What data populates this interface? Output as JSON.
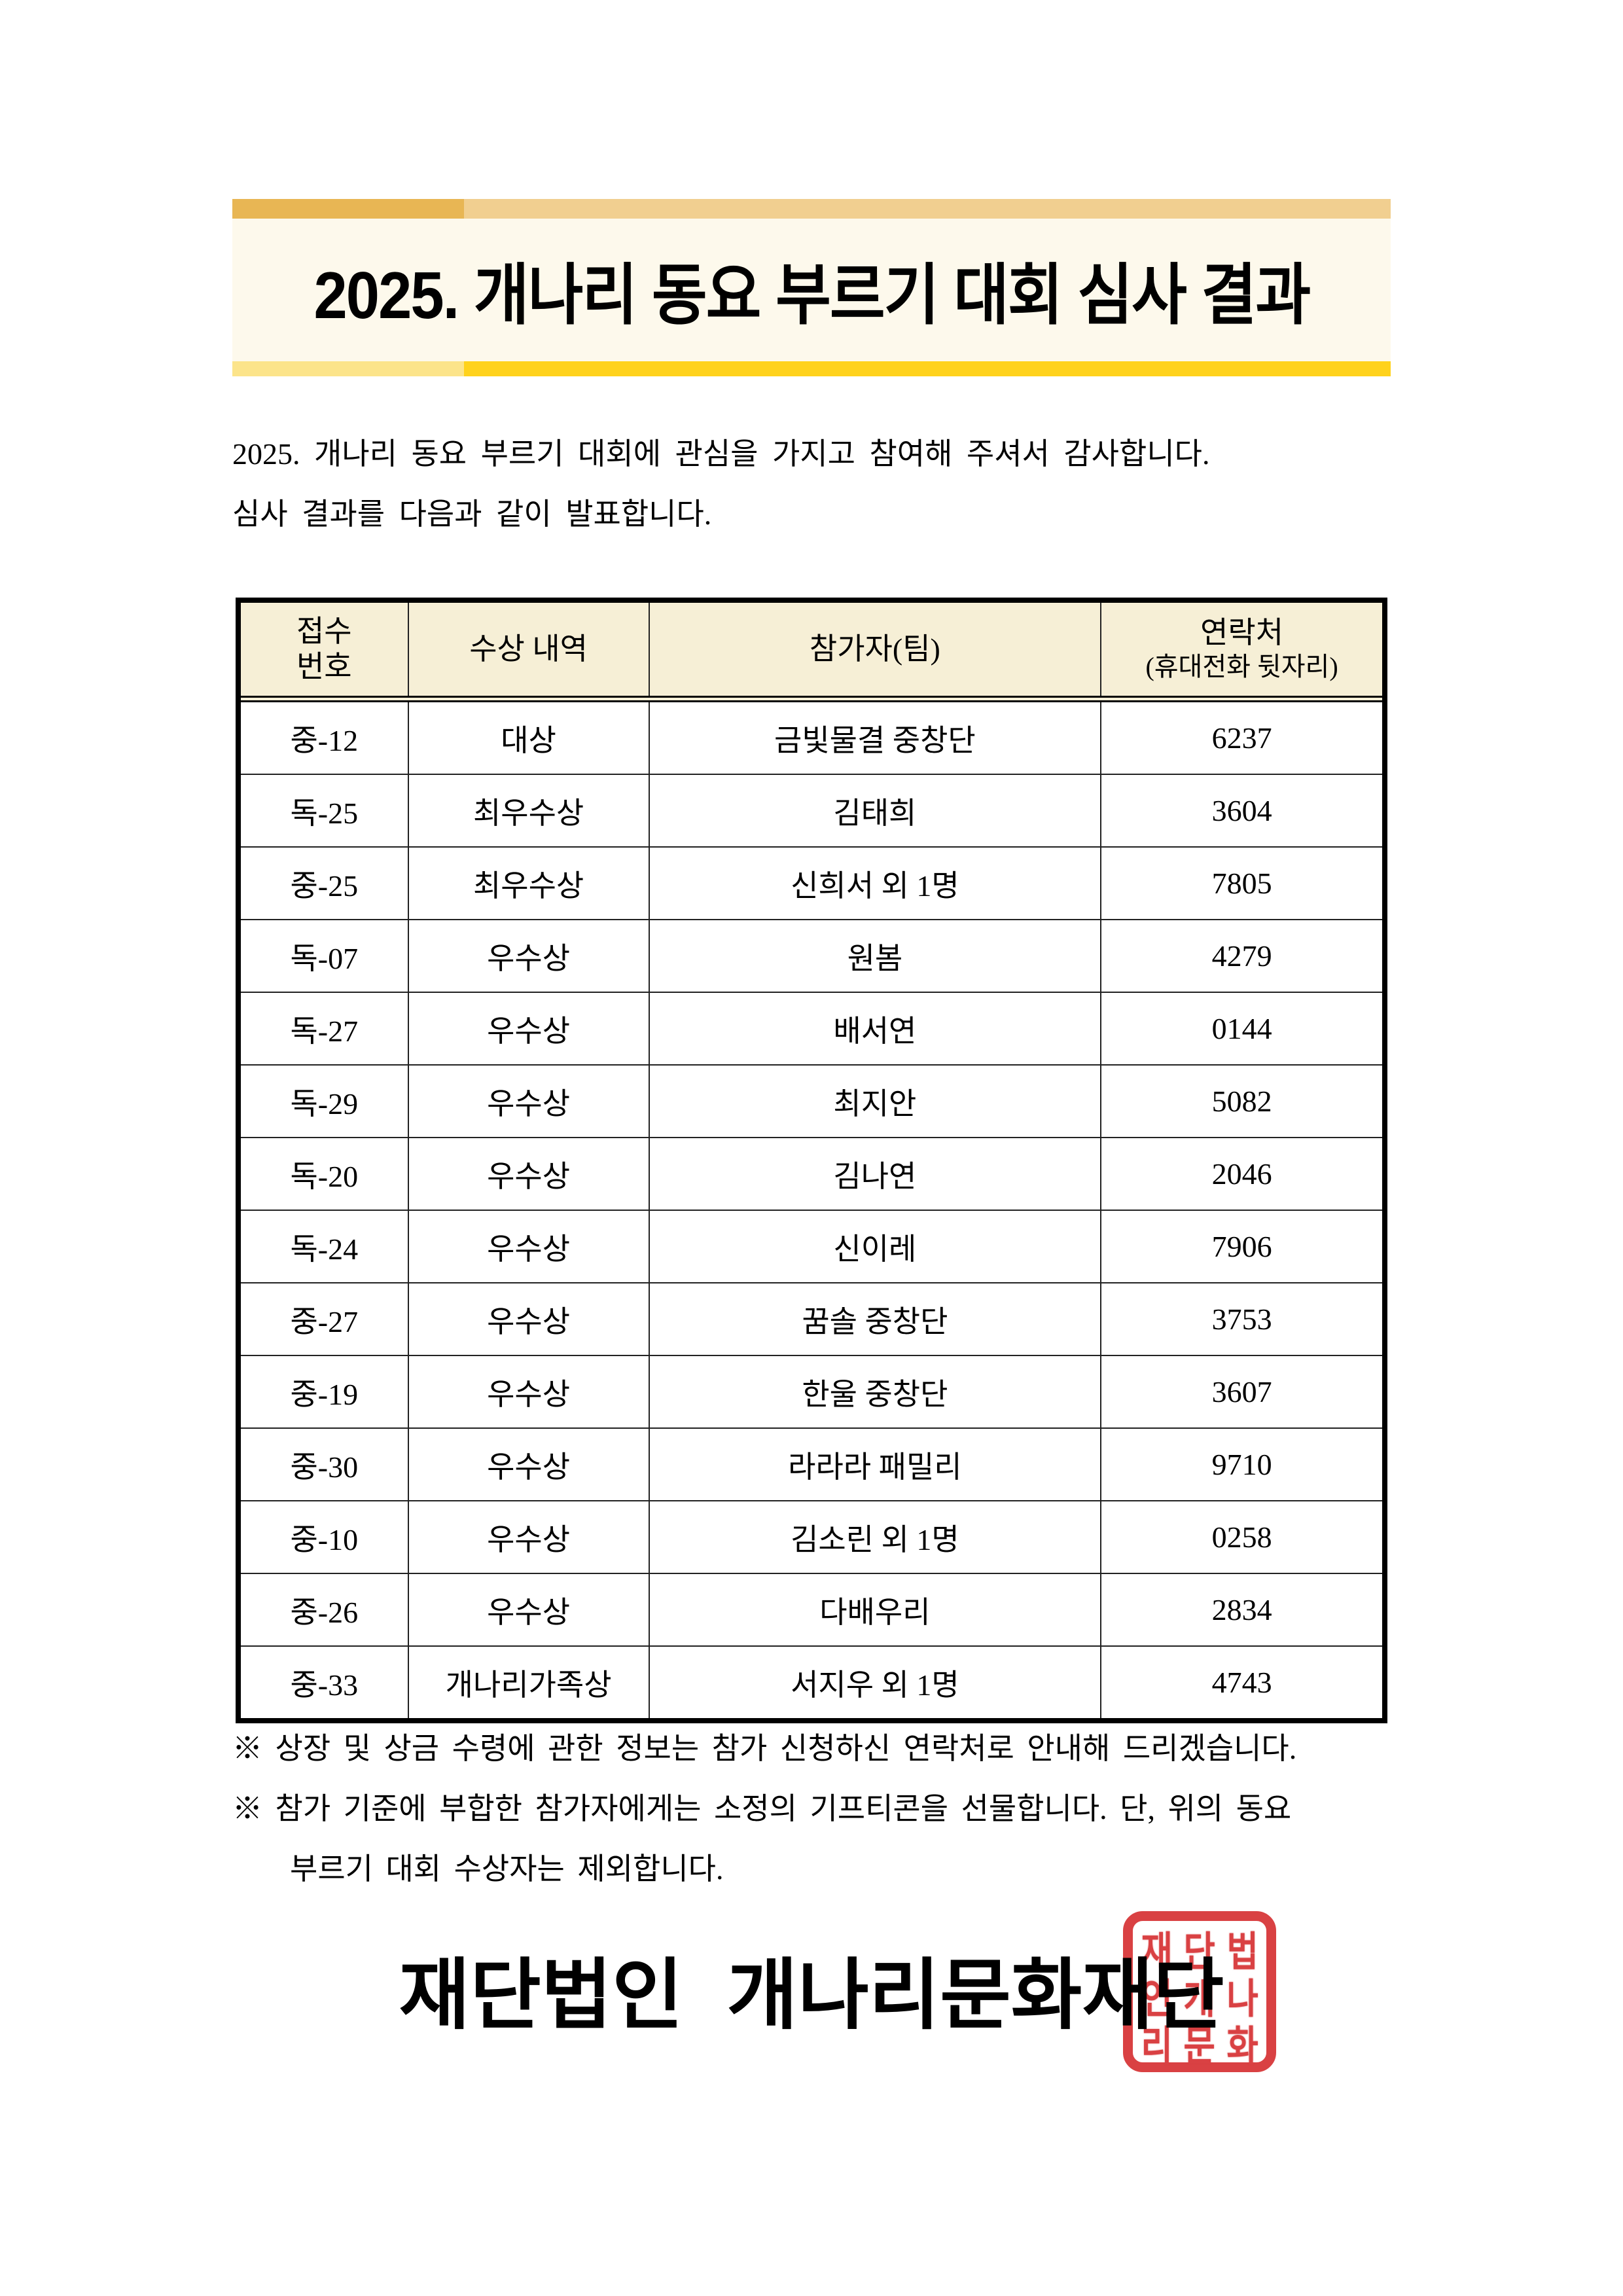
{
  "banner": {
    "title": "2025. 개나리 동요 부르기 대회 심사 결과",
    "colors": {
      "background": "#fdf9ec",
      "top_bar_left": "#e8b654",
      "top_bar_right": "#f1cf90",
      "bottom_bar_left": "#fce48a",
      "bottom_bar_right": "#ffd21c"
    }
  },
  "intro": {
    "line1": "2025. 개나리 동요 부르기 대회에 관심을 가지고 참여해 주셔서 감사합니다.",
    "line2": "심사 결과를 다음과 같이 발표합니다."
  },
  "results_table": {
    "header": {
      "receipt_no_line1": "접수",
      "receipt_no_line2": "번호",
      "award": "수상 내역",
      "participant": "참가자(팀)",
      "contact_line1": "연락처",
      "contact_line2": "(휴대전화 뒷자리)",
      "background": "#f6efd6"
    },
    "rows": [
      {
        "no": "중-12",
        "award": "대상",
        "participant": "금빛물결 중창단",
        "contact": "6237"
      },
      {
        "no": "독-25",
        "award": "최우수상",
        "participant": "김태희",
        "contact": "3604"
      },
      {
        "no": "중-25",
        "award": "최우수상",
        "participant": "신희서 외 1명",
        "contact": "7805"
      },
      {
        "no": "독-07",
        "award": "우수상",
        "participant": "원봄",
        "contact": "4279"
      },
      {
        "no": "독-27",
        "award": "우수상",
        "participant": "배서연",
        "contact": "0144"
      },
      {
        "no": "독-29",
        "award": "우수상",
        "participant": "최지안",
        "contact": "5082"
      },
      {
        "no": "독-20",
        "award": "우수상",
        "participant": "김나연",
        "contact": "2046"
      },
      {
        "no": "독-24",
        "award": "우수상",
        "participant": "신이레",
        "contact": "7906"
      },
      {
        "no": "중-27",
        "award": "우수상",
        "participant": "꿈솔 중창단",
        "contact": "3753"
      },
      {
        "no": "중-19",
        "award": "우수상",
        "participant": "한울 중창단",
        "contact": "3607"
      },
      {
        "no": "중-30",
        "award": "우수상",
        "participant": "라라라 패밀리",
        "contact": "9710"
      },
      {
        "no": "중-10",
        "award": "우수상",
        "participant": "김소린 외 1명",
        "contact": "0258"
      },
      {
        "no": "중-26",
        "award": "우수상",
        "participant": "다배우리",
        "contact": "2834"
      },
      {
        "no": "중-33",
        "award": "개나리가족상",
        "participant": "서지우 외 1명",
        "contact": "4743"
      }
    ]
  },
  "notes": {
    "note1": "※ 상장 및 상금 수령에 관한 정보는 참가 신청하신 연락처로 안내해 드리겠습니다.",
    "note2_line1": "※ 참가 기준에 부합한 참가자에게는 소정의 기프티콘을 선물합니다. 단, 위의 동요",
    "note2_line2": "부르기 대회 수상자는 제외합니다."
  },
  "footer": {
    "org_name": "재단법인 개나리문화재단",
    "stamp": {
      "text": "재단법인 개나리문화재단 직인",
      "color": "#d8393b",
      "grid": [
        "재",
        "단",
        "법",
        "인",
        "개",
        "나",
        "리",
        "문",
        "화"
      ]
    }
  }
}
